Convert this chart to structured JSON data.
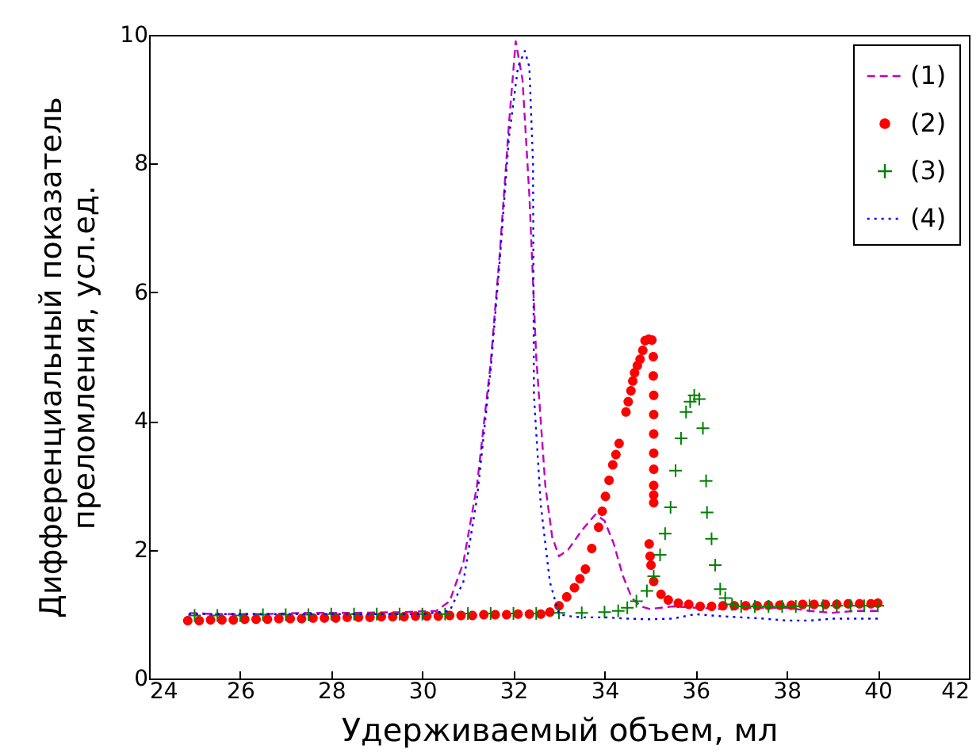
{
  "chart_data": {
    "type": "line",
    "xlabel": "Удерживаемый объем, мл",
    "ylabel": "Дифференциальный показатель\nпреломления, усл.ед.",
    "xlim": [
      24,
      42
    ],
    "xticks": [
      24,
      26,
      28,
      30,
      32,
      34,
      36,
      38,
      40,
      42
    ],
    "ylim": [
      0,
      10
    ],
    "yticks": [
      0,
      2,
      4,
      6,
      8,
      10
    ],
    "grid": false,
    "legend": "top right",
    "series": [
      {
        "name": "(1)",
        "line_style": "dashed",
        "color": "#bf00bf",
        "x": [
          24.8,
          25.5,
          26.5,
          27.5,
          28.5,
          29.5,
          30.3,
          30.6,
          30.9,
          31.2,
          31.5,
          31.7,
          31.9,
          32.05,
          32.2,
          32.35,
          32.5,
          32.7,
          32.85,
          33.0,
          33.2,
          33.5,
          33.8,
          34.0,
          34.2,
          34.4,
          34.6,
          34.8,
          35.0,
          35.5,
          36.0,
          36.5,
          37.0,
          37.5,
          38.0,
          38.5,
          39.0,
          39.5,
          40.0
        ],
        "values": [
          1.02,
          1.0,
          1.0,
          1.02,
          1.02,
          1.03,
          1.05,
          1.2,
          1.8,
          3.0,
          4.9,
          6.6,
          8.6,
          9.9,
          9.3,
          7.5,
          5.0,
          3.0,
          2.2,
          1.9,
          2.0,
          2.3,
          2.55,
          2.45,
          2.1,
          1.6,
          1.25,
          1.12,
          1.08,
          1.12,
          1.1,
          1.08,
          1.1,
          1.1,
          1.1,
          1.05,
          1.02,
          1.05,
          1.05
        ]
      },
      {
        "name": "(2)",
        "type": "scatter",
        "marker": "circle",
        "color": "#ff0000",
        "x": [
          24.85,
          25.1,
          25.35,
          25.6,
          25.85,
          26.1,
          26.35,
          26.6,
          26.85,
          27.1,
          27.35,
          27.6,
          27.85,
          28.1,
          28.35,
          28.6,
          28.85,
          29.1,
          29.35,
          29.6,
          29.85,
          30.1,
          30.35,
          30.6,
          30.85,
          31.1,
          31.35,
          31.6,
          31.85,
          32.1,
          32.35,
          32.6,
          32.8,
          33.0,
          33.17,
          33.34,
          33.46,
          33.58,
          33.72,
          33.87,
          33.95,
          34.02,
          34.1,
          34.18,
          34.25,
          34.32,
          34.47,
          34.52,
          34.58,
          34.62,
          34.66,
          34.72,
          34.78,
          34.84,
          34.89,
          34.97,
          35.04,
          35.07,
          35.07,
          35.08,
          35.08,
          35.08,
          35.08,
          35.08,
          35.08,
          35.08,
          35.08,
          34.98,
          35.0,
          35.02,
          35.08,
          35.24,
          35.4,
          35.62,
          35.85,
          36.1,
          36.35,
          36.6,
          36.85,
          37.1,
          37.35,
          37.6,
          37.85,
          38.1,
          38.35,
          38.6,
          38.85,
          39.1,
          39.35,
          39.6,
          39.85,
          40.0
        ],
        "values": [
          0.9,
          0.9,
          0.91,
          0.91,
          0.91,
          0.92,
          0.92,
          0.92,
          0.93,
          0.93,
          0.93,
          0.94,
          0.94,
          0.94,
          0.95,
          0.95,
          0.95,
          0.96,
          0.96,
          0.96,
          0.97,
          0.97,
          0.97,
          0.98,
          0.98,
          0.98,
          0.99,
          0.99,
          0.99,
          1.0,
          1.0,
          1.0,
          1.03,
          1.13,
          1.27,
          1.41,
          1.55,
          1.7,
          2.02,
          2.35,
          2.6,
          2.83,
          3.08,
          3.32,
          3.48,
          3.65,
          4.14,
          4.3,
          4.47,
          4.62,
          4.75,
          4.86,
          4.96,
          5.1,
          5.25,
          5.27,
          5.26,
          5.0,
          4.7,
          4.4,
          4.1,
          3.8,
          3.5,
          3.25,
          3.0,
          2.85,
          2.73,
          2.09,
          1.9,
          1.76,
          1.51,
          1.31,
          1.22,
          1.17,
          1.15,
          1.12,
          1.12,
          1.13,
          1.13,
          1.13,
          1.13,
          1.14,
          1.14,
          1.14,
          1.15,
          1.15,
          1.15,
          1.15,
          1.16,
          1.16,
          1.16,
          1.17
        ]
      },
      {
        "name": "(3)",
        "type": "scatter",
        "marker": "cross",
        "color": "#008000",
        "x": [
          25.0,
          25.5,
          26.0,
          26.5,
          27.0,
          27.5,
          28.0,
          28.5,
          29.0,
          29.5,
          30.0,
          30.5,
          31.0,
          31.5,
          32.0,
          32.5,
          33.0,
          33.5,
          34.0,
          34.3,
          34.5,
          34.7,
          34.93,
          35.08,
          35.22,
          35.33,
          35.45,
          35.56,
          35.68,
          35.79,
          35.88,
          35.97,
          36.08,
          36.16,
          36.23,
          36.25,
          36.35,
          36.43,
          36.54,
          36.65,
          36.8,
          37.0,
          37.3,
          37.6,
          37.9,
          38.2,
          38.5,
          38.8,
          39.1,
          39.4,
          39.7,
          40.0
        ],
        "values": [
          0.98,
          0.98,
          0.98,
          0.99,
          0.99,
          0.99,
          1.0,
          1.0,
          1.0,
          1.0,
          1.0,
          1.0,
          1.01,
          1.01,
          1.01,
          1.01,
          1.02,
          1.02,
          1.03,
          1.05,
          1.1,
          1.2,
          1.36,
          1.59,
          1.92,
          2.25,
          2.66,
          3.23,
          3.73,
          4.14,
          4.3,
          4.4,
          4.34,
          3.89,
          3.07,
          2.58,
          2.17,
          1.76,
          1.39,
          1.25,
          1.15,
          1.12,
          1.12,
          1.12,
          1.12,
          1.12,
          1.13,
          1.13,
          1.13,
          1.13,
          1.13,
          1.13
        ]
      },
      {
        "name": "(4)",
        "line_style": "dotted",
        "color": "#0000ff",
        "x": [
          24.8,
          26.0,
          28.0,
          30.0,
          30.6,
          30.9,
          31.2,
          31.5,
          31.7,
          31.9,
          32.1,
          32.25,
          32.35,
          32.43,
          32.45,
          32.6,
          32.8,
          33.0,
          33.2,
          33.5,
          34.0,
          34.5,
          35.0,
          35.5,
          36.0,
          36.5,
          37.0,
          37.5,
          38.0,
          38.5,
          39.0,
          39.5,
          40.0
        ],
        "values": [
          1.0,
          1.0,
          1.0,
          1.0,
          1.05,
          1.5,
          2.8,
          4.8,
          6.5,
          8.4,
          9.5,
          9.75,
          9.5,
          8.0,
          4.4,
          2.7,
          1.5,
          1.0,
          0.97,
          0.95,
          0.95,
          0.93,
          0.92,
          0.93,
          1.0,
          0.97,
          0.95,
          0.93,
          0.9,
          0.9,
          0.93,
          0.93,
          0.93
        ]
      }
    ]
  }
}
